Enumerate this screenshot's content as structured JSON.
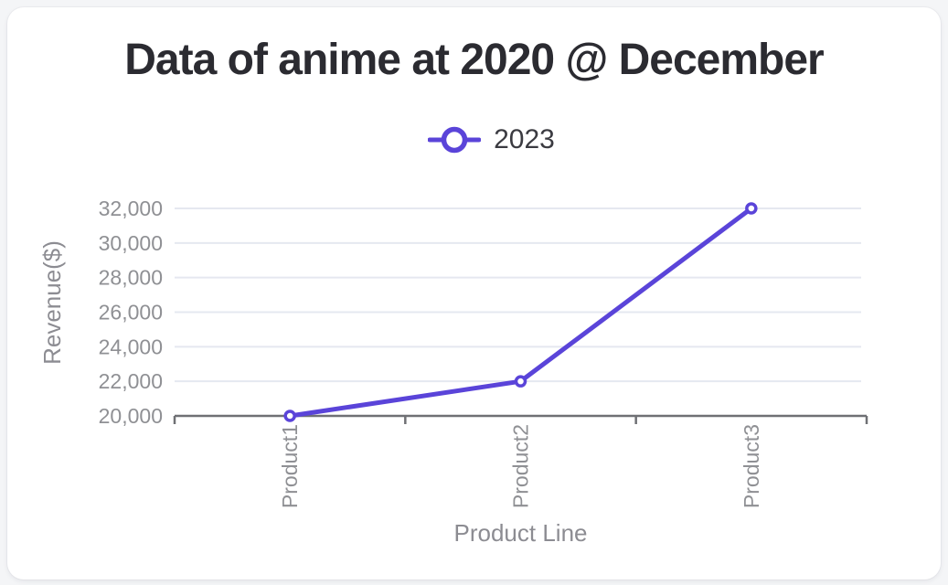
{
  "card": {
    "title": "Data of anime at 2020 @ December"
  },
  "legend": {
    "label": "2023"
  },
  "colors": {
    "page_bg": "#f4f5f7",
    "card_bg": "#ffffff",
    "accent": "#5a44d9",
    "grid": "#e5e8f0",
    "axis": "#6f7074",
    "tick": "#8f9094",
    "axis_title": "#8c8c92",
    "title": "#2b2b31",
    "legend_text": "#3b3b41"
  },
  "chart_data": {
    "type": "line",
    "title": "Data of anime at 2020 @ December",
    "categories": [
      "Product1",
      "Product2",
      "Product3"
    ],
    "series": [
      {
        "name": "2023",
        "values": [
          20000,
          22000,
          32000
        ]
      }
    ],
    "xlabel": "Product Line",
    "ylabel": "Revenue($)",
    "ylim": [
      20000,
      32000
    ],
    "ytick_step": 2000,
    "ytick_labels": [
      "20,000",
      "22,000",
      "24,000",
      "26,000",
      "28,000",
      "30,000",
      "32,000"
    ],
    "grid": "horizontal",
    "legend_position": "top",
    "marker": "circle-open"
  }
}
